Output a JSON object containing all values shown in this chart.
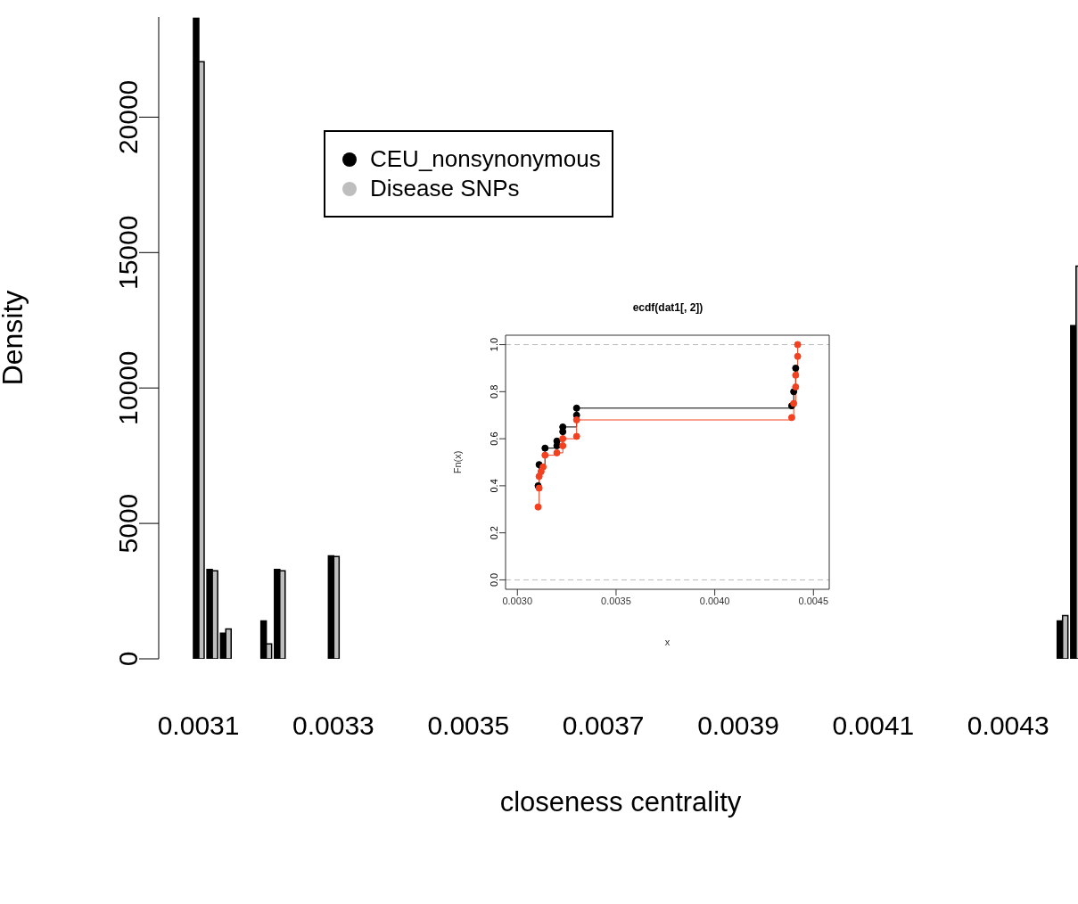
{
  "chart_data": [
    {
      "type": "bar",
      "xlabel": "closeness centrality",
      "ylabel": "Density",
      "categories": [
        "0.0031",
        null,
        null,
        null,
        null,
        null,
        null,
        null,
        null,
        null,
        "0.0033",
        null,
        null,
        null,
        null,
        null,
        null,
        null,
        null,
        null,
        "0.0035",
        null,
        null,
        null,
        null,
        null,
        null,
        null,
        null,
        null,
        "0.0037",
        null,
        null,
        null,
        null,
        null,
        null,
        null,
        null,
        null,
        "0.0039",
        null,
        null,
        null,
        null,
        null,
        null,
        null,
        null,
        null,
        "0.0041",
        null,
        null,
        null,
        null,
        null,
        null,
        null,
        null,
        null,
        "0.0043",
        null,
        null,
        null,
        null,
        null
      ],
      "series": [
        {
          "name": "CEU_nonsynonymous",
          "color": "#000000",
          "values": [
            23650,
            3300,
            950,
            0,
            0,
            1400,
            3300,
            0,
            0,
            0,
            3800,
            0,
            0,
            0,
            0,
            0,
            0,
            0,
            0,
            0,
            0,
            0,
            0,
            0,
            0,
            0,
            0,
            0,
            0,
            0,
            0,
            0,
            0,
            0,
            0,
            0,
            0,
            0,
            0,
            0,
            0,
            0,
            0,
            0,
            0,
            0,
            0,
            0,
            0,
            0,
            0,
            0,
            0,
            0,
            0,
            0,
            0,
            0,
            0,
            0,
            0,
            0,
            0,
            0,
            1400,
            12300
          ]
        },
        {
          "name": "Disease SNPs",
          "color": "#bebebe",
          "values": [
            22050,
            3250,
            1100,
            0,
            0,
            550,
            3250,
            0,
            0,
            0,
            3780,
            0,
            0,
            0,
            0,
            0,
            0,
            0,
            0,
            0,
            0,
            0,
            0,
            0,
            0,
            0,
            0,
            0,
            0,
            0,
            0,
            0,
            0,
            0,
            0,
            0,
            0,
            0,
            0,
            0,
            0,
            0,
            0,
            0,
            0,
            0,
            0,
            0,
            0,
            0,
            0,
            0,
            0,
            0,
            0,
            0,
            0,
            0,
            0,
            0,
            0,
            0,
            0,
            0,
            1600,
            14500
          ]
        }
      ],
      "ylim": [
        0,
        23700
      ],
      "yticks": [
        0,
        5000,
        10000,
        15000,
        20000
      ],
      "legend": "top left"
    },
    {
      "type": "step",
      "title": "ecdf(dat1[, 2])",
      "xlabel": "x",
      "ylabel": "Fn(x)",
      "marker": "circle",
      "line_style": "solid",
      "series": [
        {
          "color": "#000000",
          "x": [
            0.003105,
            0.00311,
            0.00314,
            0.0032,
            0.0032,
            0.00323,
            0.00323,
            0.0033,
            0.0033,
            0.00439,
            0.0044,
            0.00441
          ],
          "values": [
            0.4,
            0.49,
            0.56,
            0.57,
            0.59,
            0.63,
            0.65,
            0.7,
            0.73,
            0.74,
            0.8,
            0.9
          ]
        },
        {
          "color": "#f5401f",
          "x": [
            0.003105,
            0.00311,
            0.00311,
            0.00312,
            0.00313,
            0.00314,
            0.0032,
            0.00323,
            0.00323,
            0.0033,
            0.0033,
            0.00439,
            0.0044,
            0.00441,
            0.00441,
            0.00442,
            0.00442
          ],
          "values": [
            0.31,
            0.39,
            0.44,
            0.46,
            0.48,
            0.53,
            0.54,
            0.57,
            0.6,
            0.61,
            0.68,
            0.69,
            0.75,
            0.82,
            0.87,
            0.95,
            1.0
          ]
        }
      ],
      "xlim": [
        0.00294,
        0.00458
      ],
      "xticks": [
        {
          "value": 0.003,
          "label": "0.0030"
        },
        {
          "value": 0.0035,
          "label": "0.0035"
        },
        {
          "value": 0.004,
          "label": "0.0040"
        },
        {
          "value": 0.0045,
          "label": "0.0045"
        }
      ],
      "ylim": [
        -0.04,
        1.04
      ],
      "yticks": [
        {
          "value": 0,
          "label": "0.0"
        },
        {
          "value": 0.2,
          "label": "0.2"
        },
        {
          "value": 0.4,
          "label": "0.4"
        },
        {
          "value": 0.6,
          "label": "0.6"
        },
        {
          "value": 0.8,
          "label": "0.8"
        },
        {
          "value": 1,
          "label": "1.0"
        }
      ],
      "ref_lines": [
        {
          "axis": "y",
          "value": 0,
          "color": "#bbbbbb",
          "line_style": "dashed"
        },
        {
          "axis": "y",
          "value": 1,
          "color": "#bbbbbb",
          "line_style": "dashed"
        }
      ]
    }
  ]
}
